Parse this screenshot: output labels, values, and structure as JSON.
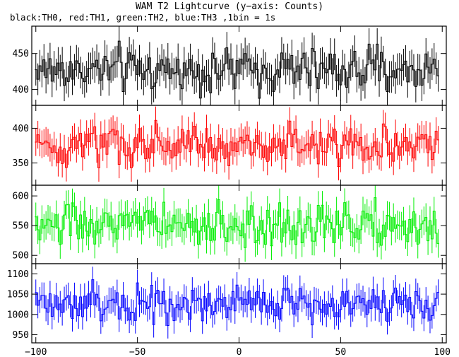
{
  "title": "WAM T2 Lightcurve (y−axis: Counts)",
  "subtitle": "black:TH0, red:TH1, green:TH2, blue:TH3 ,1bin = 1s",
  "chart_data": {
    "type": "line",
    "step": true,
    "error_bars": true,
    "title": "WAM T2 Lightcurve (y−axis: Counts)",
    "subtitle": "black:TH0, red:TH1, green:TH2, blue:TH3 ,1bin = 1s",
    "xlabel": "",
    "ylabel": "",
    "xlim": [
      -102,
      102
    ],
    "x_ticks": [
      -100,
      -50,
      0,
      50,
      100
    ],
    "x_tick_labels": [
      "−100",
      "−50",
      "0",
      "50",
      "100"
    ],
    "x_range_data": [
      -100,
      98
    ],
    "bin_seconds": 1,
    "panels": [
      {
        "name": "TH0",
        "color": "#000000",
        "ylim": [
          378,
          488
        ],
        "y_ticks": [
          400,
          450
        ],
        "mean": 427,
        "amplitude": 22,
        "error": 22
      },
      {
        "name": "TH1",
        "color": "#ff0000",
        "ylim": [
          318,
          433
        ],
        "y_ticks": [
          350,
          400
        ],
        "mean": 374,
        "amplitude": 22,
        "error": 20
      },
      {
        "name": "TH2",
        "color": "#00ee00",
        "ylim": [
          486,
          618
        ],
        "y_ticks": [
          500,
          550,
          600
        ],
        "mean": 551,
        "amplitude": 26,
        "error": 24
      },
      {
        "name": "TH3",
        "color": "#0000ff",
        "ylim": [
          930,
          1125
        ],
        "y_ticks": [
          950,
          1000,
          1050,
          1100
        ],
        "mean": 1028,
        "amplitude": 33,
        "error": 32
      }
    ]
  }
}
